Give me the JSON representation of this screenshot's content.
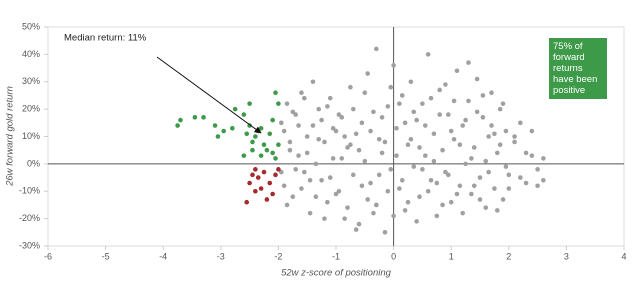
{
  "chart_data": {
    "type": "scatter",
    "x_label": "52w z-score of positioning",
    "y_label": "26w forward gold return",
    "annotations": [
      "Median return: 11%",
      "75% of forward returns have been positive"
    ],
    "xlim": [
      -6,
      4
    ],
    "xticks": [
      -6,
      -5,
      -4,
      -3,
      -2,
      -1,
      0,
      1,
      2,
      3,
      4
    ],
    "ylim": [
      -30,
      50
    ],
    "yticks": [
      {
        "value": -30,
        "label": "-30%"
      },
      {
        "value": -20,
        "label": "-20%"
      },
      {
        "value": -10,
        "label": "-10%"
      },
      {
        "value": 0,
        "label": "0%"
      },
      {
        "value": 10,
        "label": "10%"
      },
      {
        "value": 20,
        "label": "20%"
      },
      {
        "value": 30,
        "label": "30%"
      },
      {
        "value": 40,
        "label": "40%"
      },
      {
        "value": 50,
        "label": "50%"
      }
    ],
    "series": [
      {
        "color": "#a0a0a0",
        "x": [
          -1.95,
          -1.9,
          -1.85,
          -1.8,
          -1.75,
          -1.7,
          -1.65,
          -1.6,
          -1.55,
          -1.5,
          -1.45,
          -1.4,
          -1.35,
          -1.3,
          -1.25,
          -1.2,
          -1.15,
          -1.1,
          -1.05,
          -1.0,
          -0.95,
          -0.9,
          -0.85,
          -0.8,
          -0.75,
          -0.7,
          -0.65,
          -0.6,
          -0.55,
          -0.5,
          -0.45,
          -0.4,
          -0.35,
          -0.3,
          -0.25,
          -0.2,
          -0.15,
          -0.1,
          -0.05,
          0,
          0.05,
          0.1,
          0.15,
          0.2,
          0.25,
          0.3,
          0.35,
          0.4,
          0.45,
          0.5,
          0.55,
          0.6,
          0.65,
          0.7,
          0.75,
          0.8,
          0.85,
          0.9,
          0.95,
          1.0,
          1.05,
          1.1,
          1.15,
          1.2,
          1.25,
          1.3,
          1.35,
          1.4,
          1.45,
          1.5,
          1.55,
          1.6,
          1.65,
          1.7,
          1.75,
          1.8,
          1.85,
          1.9,
          1.95,
          2.0,
          2.1,
          2.2,
          2.3,
          2.4,
          2.5,
          2.6
        ],
        "values": [
          15,
          -8,
          22,
          5,
          -12,
          18,
          3,
          26,
          -3,
          10,
          -18,
          14,
          0,
          20,
          -6,
          8,
          -14,
          24,
          2,
          12,
          -10,
          17,
          -20,
          6,
          28,
          -4,
          11,
          -22,
          15,
          1,
          33,
          -7,
          19,
          -15,
          9,
          4,
          -25,
          21,
          -2,
          36,
          13,
          -9,
          25,
          -17,
          7,
          30,
          -1,
          16,
          -12,
          22,
          3,
          40,
          -6,
          11,
          -19,
          27,
          5,
          -3,
          18,
          -14,
          9,
          34,
          -8,
          14,
          0,
          23,
          -11,
          6,
          31,
          -5,
          17,
          -16,
          10,
          26,
          -9,
          4,
          20,
          -13,
          12,
          -4,
          8,
          15,
          -7,
          3,
          -2,
          -6
        ]
      },
      {
        "color": "#a0a0a0",
        "x": [
          -1.95,
          -1.9,
          -1.85,
          -1.8,
          -1.75,
          -1.7,
          -1.65,
          -1.6,
          -1.55,
          -1.5,
          -1.45,
          -1.4,
          -1.35,
          -1.3,
          -1.25,
          -1.2,
          -1.15,
          -1.1,
          -1.05,
          -1.0,
          -0.95,
          -0.9,
          -0.85,
          -0.8,
          -0.75,
          -0.7,
          -0.65,
          -0.6,
          -0.55,
          -0.5,
          -0.45,
          -0.4,
          -0.35,
          -0.3,
          -0.25,
          -0.2,
          -0.15,
          -0.1,
          -0.05,
          0,
          0.05,
          0.1,
          0.15,
          0.2,
          0.25,
          0.3,
          0.35,
          0.4,
          0.45,
          0.5,
          0.55,
          0.6,
          0.65,
          0.7,
          0.75,
          0.8,
          0.85,
          0.9,
          0.95,
          1.0,
          1.05,
          1.1,
          1.15,
          1.2,
          1.25,
          1.3,
          1.35,
          1.4,
          1.45,
          1.5,
          1.55,
          1.6,
          1.65,
          1.7,
          1.75,
          1.8,
          1.85,
          1.9,
          1.95,
          2.0,
          2.1,
          2.2,
          2.3,
          2.4,
          2.5,
          2.6
        ],
        "values": [
          -3,
          12,
          -15,
          8,
          19,
          -2,
          14,
          -9,
          24,
          4,
          -6,
          30,
          -12,
          9,
          16,
          -20,
          21,
          -5,
          13,
          -11,
          18,
          2,
          10,
          -16,
          7,
          20,
          -24,
          5,
          -8,
          26,
          -13,
          12,
          -18,
          42,
          -4,
          17,
          8,
          -10,
          28,
          -19,
          3,
          22,
          -6,
          15,
          -14,
          9,
          19,
          -21,
          6,
          -2,
          14,
          -10,
          24,
          1,
          -7,
          18,
          -15,
          29,
          -4,
          12,
          23,
          -11,
          7,
          -18,
          16,
          37,
          2,
          -8,
          19,
          -13,
          25,
          1,
          -3,
          14,
          11,
          -17,
          7,
          22,
          -1,
          -9,
          10,
          -5,
          4,
          12,
          -8,
          2
        ]
      },
      {
        "color": "#3d9a48",
        "x": [
          -3.75,
          -3.7,
          -3.45,
          -3.3,
          -3.1,
          -3.05,
          -2.95,
          -2.8,
          -2.75,
          -2.6,
          -2.55,
          -2.5,
          -2.45,
          -2.45,
          -2.4,
          -2.35,
          -2.3,
          -2.25,
          -2.2,
          -2.15,
          -2.1,
          -2.1,
          -2.05,
          -2.05,
          -2.0,
          -2.0,
          -2.3,
          -2.5,
          -2.6
        ],
        "values": [
          14,
          16,
          17,
          17,
          14,
          10,
          12,
          13,
          20,
          18,
          11,
          14,
          8,
          5,
          10,
          12,
          13,
          7,
          5,
          11,
          4,
          16,
          26,
          2,
          22,
          7,
          3,
          22,
          3
        ]
      },
      {
        "color": "#a52a2a",
        "x": [
          -2.55,
          -2.5,
          -2.45,
          -2.4,
          -2.35,
          -2.3,
          -2.25,
          -2.2,
          -2.15,
          -2.1,
          -2.05,
          -2.0,
          -2.4
        ],
        "values": [
          -14,
          -7,
          -4,
          -10,
          -5,
          -9,
          -3,
          -13,
          -7,
          -11,
          -4,
          -2,
          -2
        ]
      }
    ]
  }
}
